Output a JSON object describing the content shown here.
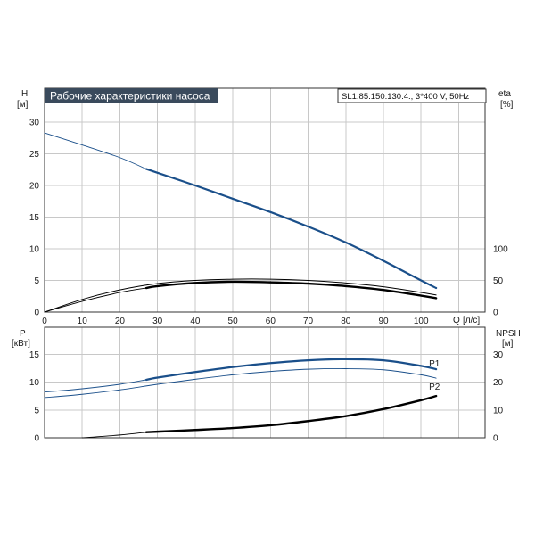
{
  "title_box": {
    "title": "Рабочие характеристики насоса",
    "model": "SL1.85.150.130.4., 3*400 V, 50Hz"
  },
  "colors": {
    "head_curve": "#1a4f8a",
    "power_curve": "#1a4f8a",
    "efficiency_curve": "#000000",
    "npsh_curve": "#000000",
    "grid": "#c8c8c8",
    "title_bg": "#3a4a5c"
  },
  "chart_data": [
    {
      "type": "line",
      "panel": "top",
      "y_axis_left": {
        "name": "H",
        "unit": "[м]",
        "ticks": [
          "0",
          "5",
          "10",
          "15",
          "20",
          "25",
          "30"
        ],
        "range": [
          0,
          32
        ]
      },
      "y_axis_right": {
        "name": "eta",
        "unit": "[%]",
        "ticks": [
          "0",
          "50",
          "100"
        ],
        "range": [
          0,
          100
        ]
      },
      "x_axis": {
        "name": "Q",
        "unit": "[л/с]",
        "ticks": [
          "0",
          "10",
          "20",
          "30",
          "40",
          "50",
          "60",
          "70",
          "80",
          "90",
          "100"
        ],
        "range": [
          0,
          117
        ]
      },
      "grid": true,
      "series": [
        {
          "key": "head",
          "axis": "left",
          "x": [
            0,
            10,
            20,
            27,
            30,
            40,
            50,
            60,
            70,
            80,
            90,
            100,
            104
          ],
          "y": [
            28.3,
            26.4,
            24.4,
            22.6,
            22.0,
            20.0,
            17.9,
            15.8,
            13.5,
            11.0,
            8.1,
            5.0,
            3.8
          ]
        },
        {
          "key": "efficiency-upper",
          "axis": "right",
          "x": [
            0,
            10,
            20,
            30,
            40,
            50,
            60,
            70,
            80,
            90,
            100,
            104
          ],
          "y": [
            0,
            20,
            35,
            45,
            50,
            52,
            52,
            50,
            46,
            40,
            31,
            27
          ]
        },
        {
          "key": "efficiency-lower",
          "axis": "right",
          "x": [
            0,
            10,
            20,
            27,
            30,
            40,
            50,
            60,
            70,
            80,
            90,
            100,
            104
          ],
          "y": [
            0,
            17,
            31,
            38,
            41,
            46,
            48,
            47,
            45,
            41,
            35,
            26,
            22
          ]
        }
      ]
    },
    {
      "type": "line",
      "panel": "bottom",
      "y_axis_left": {
        "name": "P",
        "unit": "[кВт]",
        "ticks": [
          "0",
          "5",
          "10",
          "15"
        ],
        "range": [
          0,
          17.5
        ]
      },
      "y_axis_right": {
        "name": "NPSH",
        "unit": "[м]",
        "ticks": [
          "0",
          "10",
          "20",
          "30"
        ],
        "range": [
          0,
          35
        ]
      },
      "x_axis": {
        "range": [
          0,
          117
        ]
      },
      "grid": true,
      "series": [
        {
          "key": "power-p1",
          "name": "P1",
          "axis": "left",
          "x": [
            0,
            10,
            20,
            27,
            30,
            40,
            50,
            60,
            70,
            80,
            90,
            100,
            104
          ],
          "y": [
            8.2,
            8.8,
            9.6,
            10.4,
            10.8,
            11.8,
            12.7,
            13.4,
            13.9,
            14.1,
            13.9,
            12.9,
            12.3
          ]
        },
        {
          "key": "power-p2",
          "name": "P2",
          "axis": "left",
          "x": [
            0,
            10,
            20,
            30,
            40,
            50,
            60,
            70,
            80,
            90,
            100,
            104
          ],
          "y": [
            7.2,
            7.8,
            8.6,
            9.6,
            10.5,
            11.3,
            11.9,
            12.3,
            12.4,
            12.2,
            11.3,
            10.7
          ]
        },
        {
          "key": "npsh",
          "axis": "right",
          "x": [
            10,
            20,
            27,
            30,
            40,
            50,
            60,
            70,
            80,
            90,
            100,
            104
          ],
          "y": [
            0,
            1,
            2,
            2.2,
            2.8,
            3.5,
            4.5,
            6,
            7.8,
            10.3,
            13.5,
            15
          ]
        }
      ]
    }
  ]
}
